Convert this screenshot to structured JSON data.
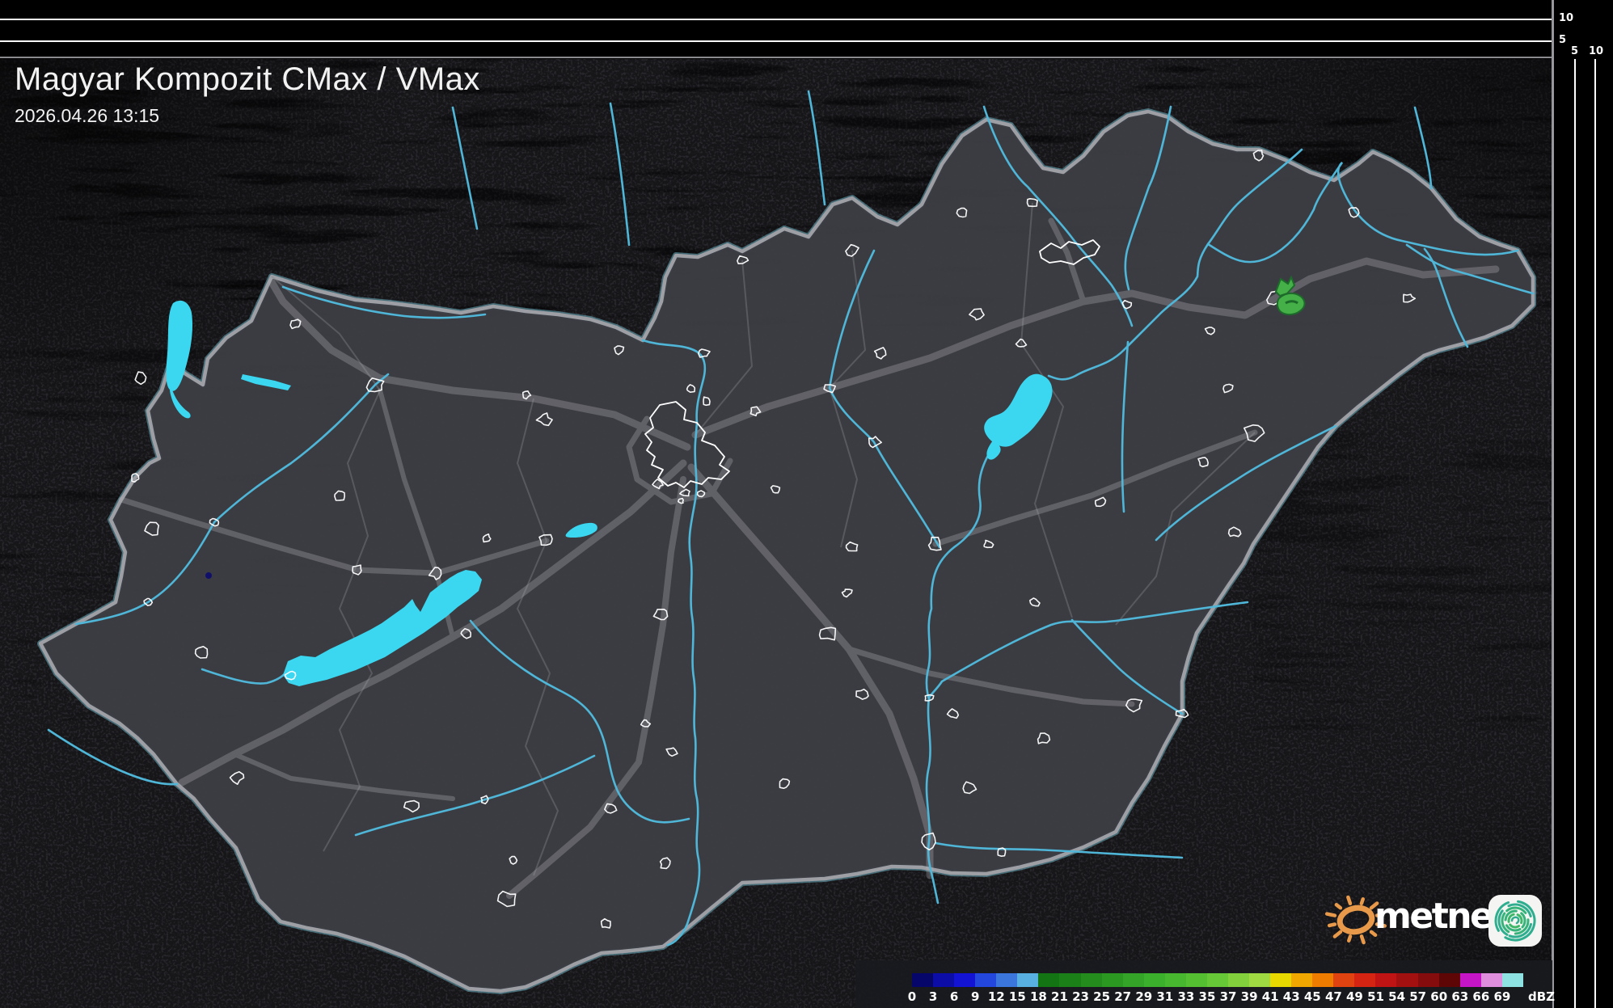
{
  "header": {
    "title": "Magyar Kompozit CMax / VMax",
    "timestamp": "2026.04.26 13:15"
  },
  "side_panels": {
    "top_height_ticks": [
      "10",
      "5"
    ],
    "right_height_ticks": [
      "5",
      "10"
    ]
  },
  "colorbar": {
    "unit": "dBZ",
    "ticks": [
      "0",
      "3",
      "6",
      "9",
      "12",
      "15",
      "18",
      "21",
      "23",
      "25",
      "27",
      "29",
      "31",
      "33",
      "35",
      "37",
      "39",
      "41",
      "43",
      "45",
      "47",
      "49",
      "51",
      "54",
      "57",
      "60",
      "63",
      "66",
      "69"
    ],
    "colors": [
      "#06066a",
      "#0c0ca6",
      "#1313d4",
      "#2347dc",
      "#3b76dd",
      "#58b0e2",
      "#137413",
      "#1b8018",
      "#238c1d",
      "#2b9822",
      "#33a427",
      "#3bb02c",
      "#46b72e",
      "#55bf32",
      "#66c836",
      "#82d13c",
      "#9fda43",
      "#e7d800",
      "#f0a800",
      "#ee7c00",
      "#e14310",
      "#d62413",
      "#c01414",
      "#a31010",
      "#850c0c",
      "#5e0606",
      "#c615c6",
      "#de8edd",
      "#8fe2e2"
    ]
  },
  "logo": {
    "text": "metnet",
    "sun_icon": "sun-rays-icon",
    "app_icon": "cyclone-spiral-icon"
  },
  "colors": {
    "lake": "#3bd7f0",
    "river": "#4fb6d8",
    "border": "#a2a2a8",
    "border_halo": "#7fd2e6",
    "road": "#b0b0b6",
    "county": "#84848c",
    "city_outline": "#ffffff",
    "echo_green": "#45b047",
    "echo_green_dark": "#1d6b2a",
    "echo_navy": "#10106a",
    "land_inside": "#3c3d43",
    "land_outside": "#26262b",
    "panel_grid": "#ffffff",
    "divider": "#97979c",
    "legend_bg": "#181a1e",
    "logo_orange": "#e89a4a",
    "logo_spiral": "#2fae8f"
  }
}
